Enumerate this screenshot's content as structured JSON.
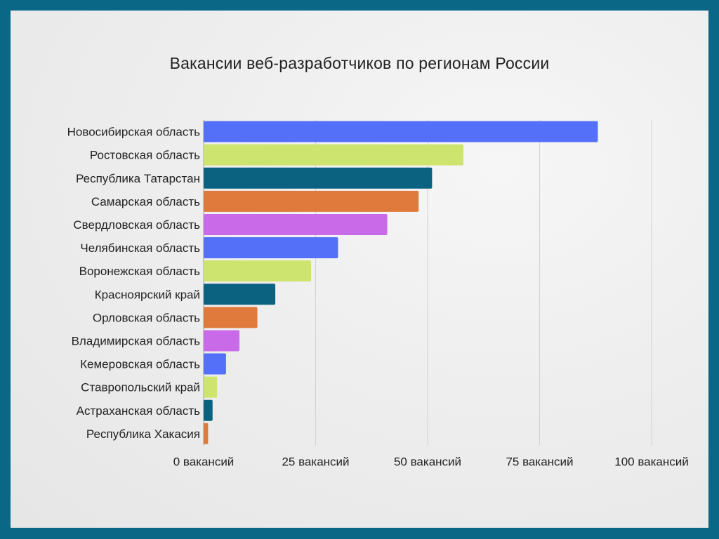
{
  "chart_data": {
    "type": "bar",
    "orientation": "horizontal",
    "title": "Вакансии веб-разработчиков по регионам России",
    "categories": [
      "Новосибирская область",
      "Ростовская область",
      "Республика Татарстан",
      "Самарская область",
      "Свердловская область",
      "Челябинская область",
      "Воронежская область",
      "Красноярский край",
      "Орловская область",
      "Владимирская область",
      "Кемеровская область",
      "Ставропольский край",
      "Астраханская область",
      "Республика Хакасия"
    ],
    "values": [
      88,
      58,
      51,
      48,
      41,
      30,
      24,
      16,
      12,
      8,
      5,
      3,
      2,
      1
    ],
    "colors": [
      "#5470f8",
      "#cde46e",
      "#0b6280",
      "#e07a3c",
      "#c96ae8"
    ],
    "xlim": [
      0,
      100
    ],
    "xticks": [
      0,
      25,
      50,
      75,
      100
    ],
    "xtick_labels": [
      "0 вакансий",
      "25 вакансий",
      "50 вакансий",
      "75 вакансий",
      "100 вакансий"
    ],
    "grid": "vertical"
  }
}
